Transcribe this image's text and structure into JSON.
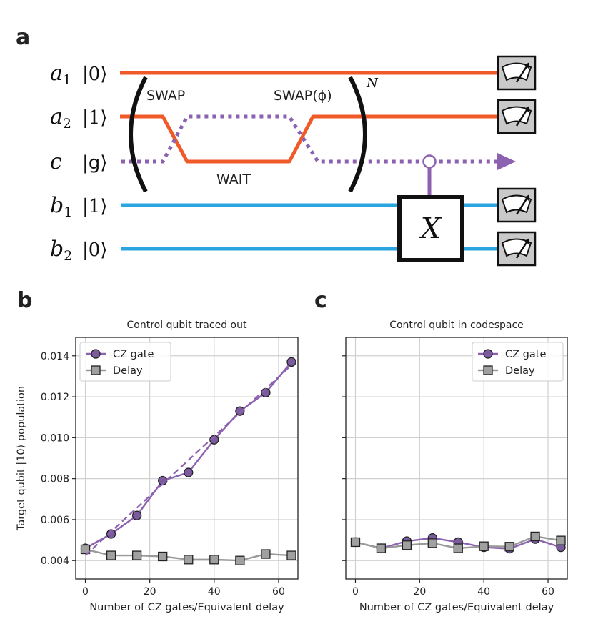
{
  "panels": {
    "a": "a",
    "b": "b",
    "c": "c"
  },
  "colors": {
    "a_wire": "#f05a28",
    "b_wire": "#2aa5e0",
    "c_wire": "#8c62b0",
    "cz": "#8c62b0",
    "cz_marker": "#7b5a9d",
    "delay": "#9a9a9a",
    "delay_marker": "#a0a0a0",
    "meter_bg": "#c9c9c9"
  },
  "circuit": {
    "rows": [
      {
        "name": "a",
        "sub": "1",
        "ket": "|0⟩",
        "gfont": false
      },
      {
        "name": "a",
        "sub": "2",
        "ket": "|1⟩",
        "gfont": false
      },
      {
        "name": "c",
        "sub": "",
        "ket": "|g⟩",
        "gfont": true
      },
      {
        "name": "b",
        "sub": "1",
        "ket": "|1⟩",
        "gfont": false
      },
      {
        "name": "b",
        "sub": "2",
        "ket": "|0⟩",
        "gfont": false
      }
    ],
    "swap_label": "SWAP",
    "swapphi_label": "SWAP(ϕ)",
    "wait_label": "WAIT",
    "repeat_label": "N",
    "x_gate_label": "X"
  },
  "chart_data": [
    {
      "type": "line",
      "panel": "b",
      "title": "Control qubit traced out",
      "xlabel": "Number of CZ gates/Equivalent delay",
      "ylabel": "Target qubit |10⟩ population",
      "xlim": [
        -3,
        66
      ],
      "ylim": [
        0.0031,
        0.0149
      ],
      "xticks": [
        0,
        20,
        40,
        60
      ],
      "yticks": [
        0.004,
        0.006,
        0.008,
        0.01,
        0.012,
        0.014
      ],
      "ytick_labels": [
        "0.004",
        "0.006",
        "0.008",
        "0.010",
        "0.012",
        "0.014"
      ],
      "legend_position": "upper-left",
      "grid": true,
      "series": [
        {
          "name": "CZ gate",
          "marker": "circle",
          "x": [
            0,
            8,
            16,
            24,
            32,
            40,
            48,
            56,
            64
          ],
          "y": [
            0.0046,
            0.0053,
            0.0062,
            0.0079,
            0.0083,
            0.0099,
            0.0113,
            0.0122,
            0.0137
          ]
        },
        {
          "name": "Delay",
          "marker": "square",
          "x": [
            0,
            8,
            16,
            24,
            32,
            40,
            48,
            56,
            64
          ],
          "y": [
            0.00455,
            0.00425,
            0.00425,
            0.0042,
            0.00405,
            0.00405,
            0.004,
            0.00432,
            0.00425
          ]
        },
        {
          "name": "CZ fit",
          "style": "dashed",
          "x": [
            0,
            64
          ],
          "y": [
            0.00425,
            0.01355
          ]
        }
      ]
    },
    {
      "type": "line",
      "panel": "c",
      "title": "Control qubit in codespace",
      "xlabel": "Number of CZ gates/Equivalent delay",
      "xlim": [
        -3,
        66
      ],
      "ylim": [
        0.0031,
        0.0149
      ],
      "xticks": [
        0,
        20,
        40,
        60
      ],
      "yticks": [
        0.004,
        0.006,
        0.008,
        0.01,
        0.012,
        0.014
      ],
      "legend_position": "upper-right",
      "grid": true,
      "series": [
        {
          "name": "CZ gate",
          "marker": "circle",
          "x": [
            0,
            8,
            16,
            24,
            32,
            40,
            48,
            56,
            64
          ],
          "y": [
            0.0049,
            0.0046,
            0.00495,
            0.0051,
            0.0049,
            0.00465,
            0.00458,
            0.00505,
            0.00465
          ]
        },
        {
          "name": "Delay",
          "marker": "square",
          "x": [
            0,
            8,
            16,
            24,
            32,
            40,
            48,
            56,
            64
          ],
          "y": [
            0.0049,
            0.0046,
            0.00475,
            0.00485,
            0.0046,
            0.0047,
            0.00468,
            0.00518,
            0.00498
          ]
        }
      ]
    }
  ]
}
